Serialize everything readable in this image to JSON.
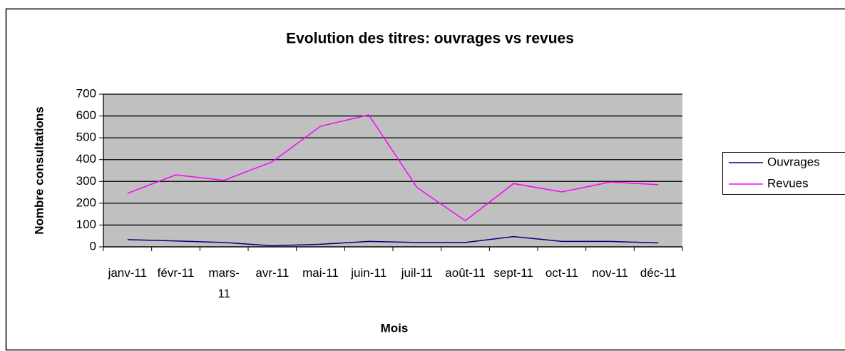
{
  "chart_data": {
    "type": "line",
    "title": "Evolution des titres: ouvrages vs revues",
    "xlabel": "Mois",
    "ylabel": "Nombre consultations",
    "categories": [
      "janv-11",
      "févr-11",
      "mars-11",
      "avr-11",
      "mai-11",
      "juin-11",
      "juil-11",
      "août-11",
      "sept-11",
      "oct-11",
      "nov-11",
      "déc-11"
    ],
    "series": [
      {
        "name": "Ouvrages",
        "color": "#000080",
        "values": [
          33,
          27,
          20,
          5,
          12,
          25,
          20,
          20,
          47,
          25,
          25,
          18
        ]
      },
      {
        "name": "Revues",
        "color": "#ff00ff",
        "values": [
          245,
          330,
          305,
          390,
          553,
          605,
          272,
          120,
          290,
          252,
          297,
          285
        ]
      }
    ],
    "ylim": [
      0,
      700
    ],
    "yticks": [
      0,
      100,
      200,
      300,
      400,
      500,
      600,
      700
    ],
    "grid": true,
    "legend": "right",
    "plot_background": "#c0c0c0"
  }
}
